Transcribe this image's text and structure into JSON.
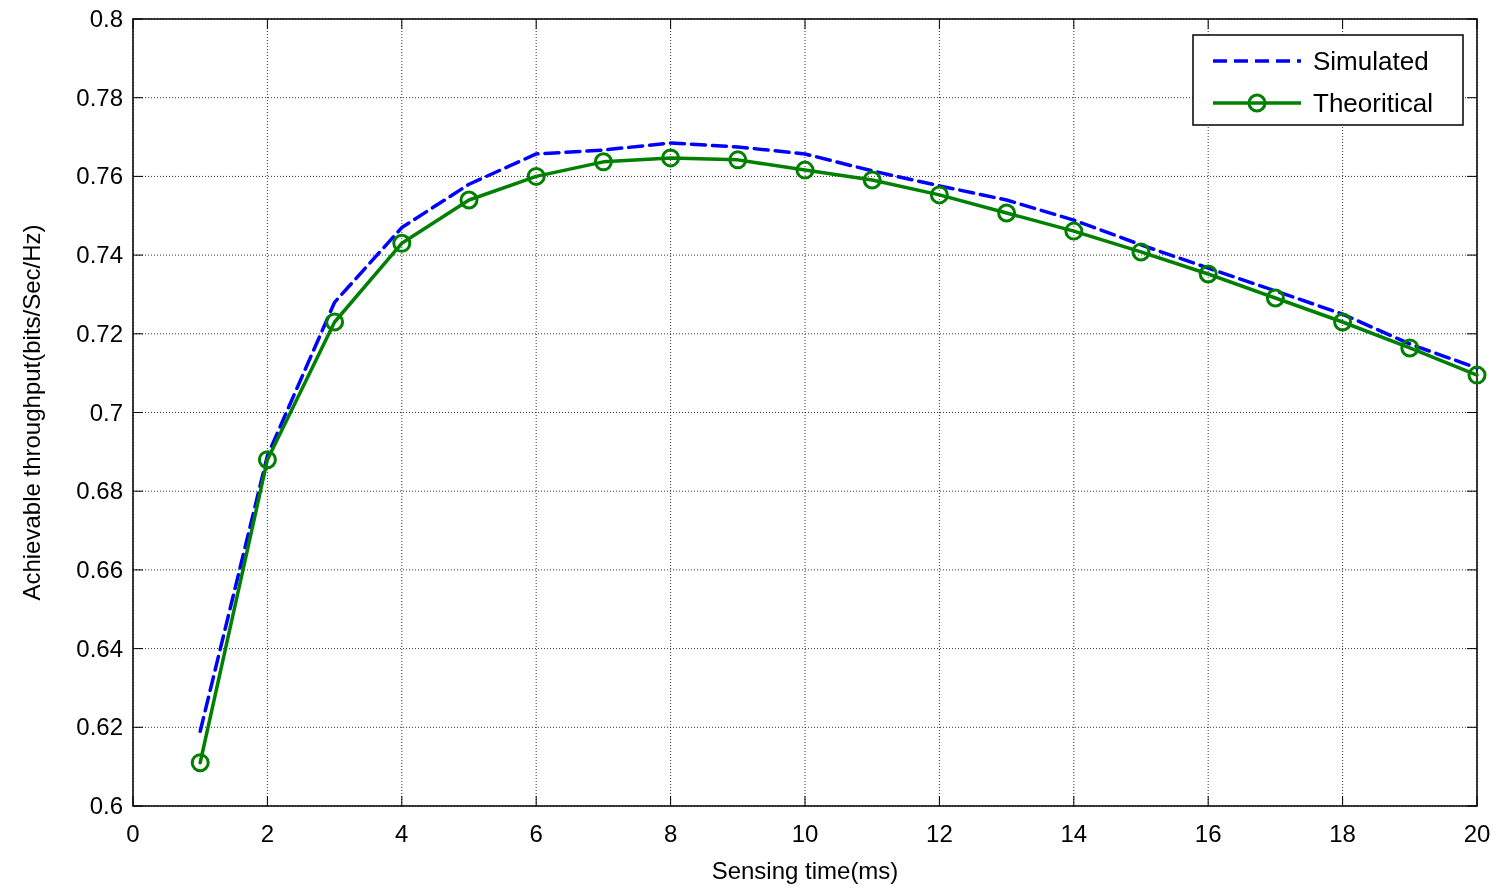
{
  "chart_data": {
    "type": "line",
    "xlabel": "Sensing time(ms)",
    "ylabel": "Achievable throughput(bits/Sec/Hz)",
    "x": [
      1,
      2,
      3,
      4,
      5,
      6,
      7,
      8,
      9,
      10,
      11,
      12,
      13,
      14,
      15,
      16,
      17,
      18,
      19,
      20
    ],
    "series": [
      {
        "name": "Simulated",
        "color": "#0000ff",
        "line_style": "dashed",
        "marker": "none",
        "values": [
          0.619,
          0.689,
          0.728,
          0.747,
          0.758,
          0.7657,
          0.7667,
          0.7685,
          0.7675,
          0.7657,
          0.7614,
          0.7576,
          0.754,
          0.7489,
          0.7426,
          0.7367,
          0.7309,
          0.725,
          0.7174,
          0.7113
        ]
      },
      {
        "name": "Theoritical",
        "color": "#008000",
        "line_style": "solid",
        "marker": "circle",
        "values": [
          0.611,
          0.688,
          0.723,
          0.743,
          0.754,
          0.76,
          0.7637,
          0.7647,
          0.7642,
          0.7616,
          0.7591,
          0.7553,
          0.7507,
          0.7461,
          0.7408,
          0.7352,
          0.7291,
          0.723,
          0.7164,
          0.7095
        ]
      }
    ],
    "xlim": [
      0,
      20
    ],
    "xticks": [
      0,
      2,
      4,
      6,
      8,
      10,
      12,
      14,
      16,
      18,
      20
    ],
    "ylim": [
      0.6,
      0.8
    ],
    "yticks": [
      0.6,
      0.62,
      0.64,
      0.66,
      0.68,
      0.7,
      0.72,
      0.74,
      0.76,
      0.78,
      0.8
    ],
    "grid": true,
    "legend": "top right"
  }
}
